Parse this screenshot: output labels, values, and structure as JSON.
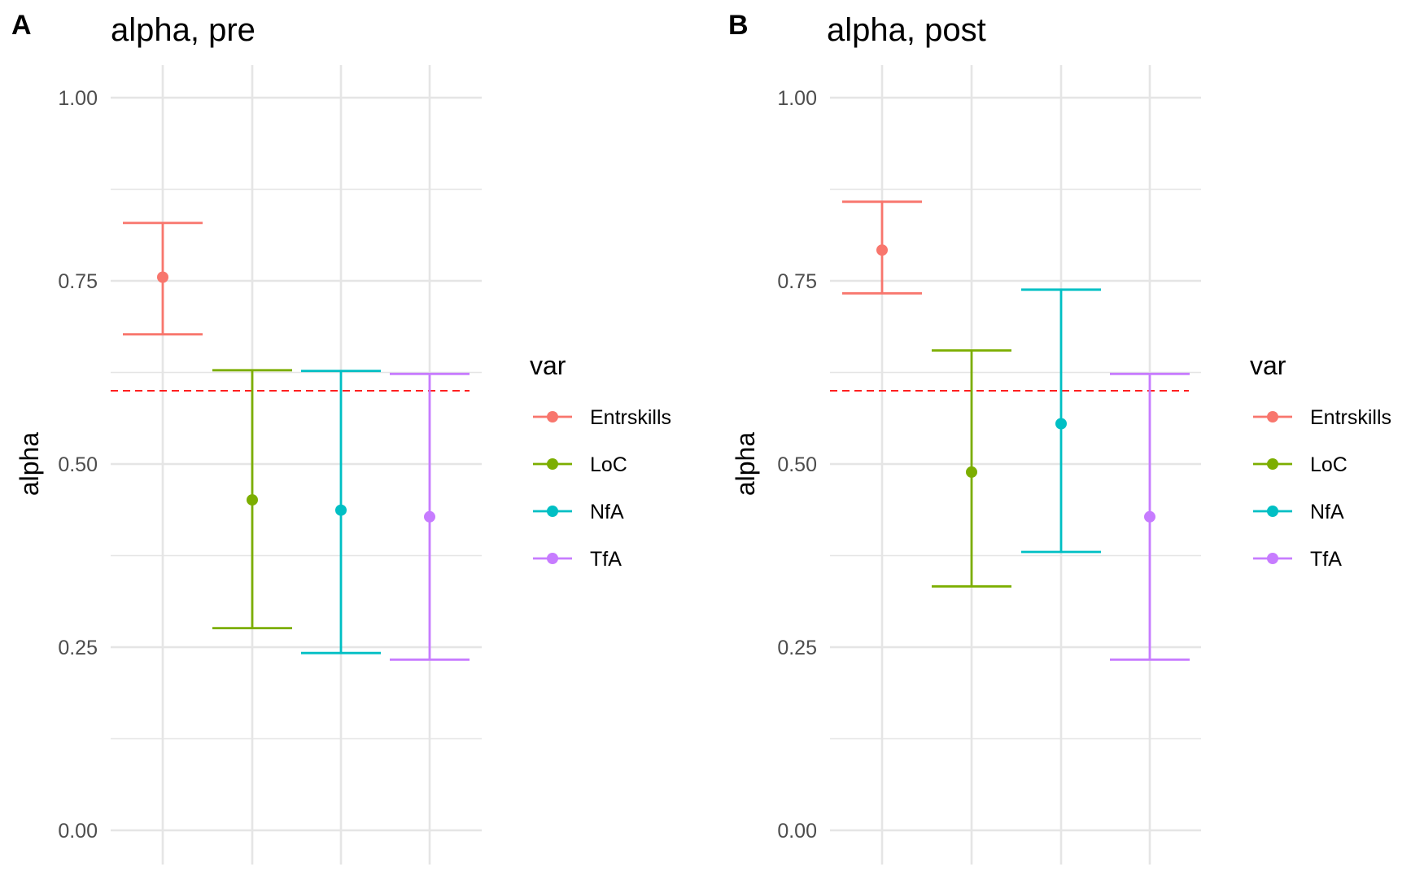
{
  "panels": [
    {
      "letter": "A",
      "title": "alpha, pre"
    },
    {
      "letter": "B",
      "title": "alpha, post"
    }
  ],
  "legend": {
    "title": "var",
    "items": [
      {
        "name": "Entrskills",
        "color": "#F8766D"
      },
      {
        "name": "LoC",
        "color": "#7CAE00"
      },
      {
        "name": "NfA",
        "color": "#00BFC4"
      },
      {
        "name": "TfA",
        "color": "#C77CFF"
      }
    ]
  },
  "colors": {
    "grid": "#e5e5e5",
    "reference_line": "#ff0000",
    "tick_text": "#4d4d4d"
  },
  "chart_data": [
    {
      "type": "scatter",
      "title": "alpha, pre",
      "xlabel": "",
      "ylabel": "alpha",
      "ylim": [
        0,
        1.0
      ],
      "yticks": [
        "0.00",
        "0.25",
        "0.50",
        "0.75",
        "1.00"
      ],
      "reference_line": 0.6,
      "grid": true,
      "legend_position": "right",
      "series": [
        {
          "name": "Entrskills",
          "alpha": 0.755,
          "lower": 0.677,
          "upper": 0.829
        },
        {
          "name": "LoC",
          "alpha": 0.451,
          "lower": 0.276,
          "upper": 0.628
        },
        {
          "name": "NfA",
          "alpha": 0.437,
          "lower": 0.242,
          "upper": 0.627
        },
        {
          "name": "TfA",
          "alpha": 0.428,
          "lower": 0.233,
          "upper": 0.623
        }
      ]
    },
    {
      "type": "scatter",
      "title": "alpha, post",
      "xlabel": "",
      "ylabel": "alpha",
      "ylim": [
        0,
        1.0
      ],
      "yticks": [
        "0.00",
        "0.25",
        "0.50",
        "0.75",
        "1.00"
      ],
      "reference_line": 0.6,
      "grid": true,
      "legend_position": "right",
      "series": [
        {
          "name": "Entrskills",
          "alpha": 0.792,
          "lower": 0.733,
          "upper": 0.858
        },
        {
          "name": "LoC",
          "alpha": 0.489,
          "lower": 0.333,
          "upper": 0.655
        },
        {
          "name": "NfA",
          "alpha": 0.555,
          "lower": 0.38,
          "upper": 0.738
        },
        {
          "name": "TfA",
          "alpha": 0.428,
          "lower": 0.233,
          "upper": 0.623
        }
      ]
    }
  ]
}
